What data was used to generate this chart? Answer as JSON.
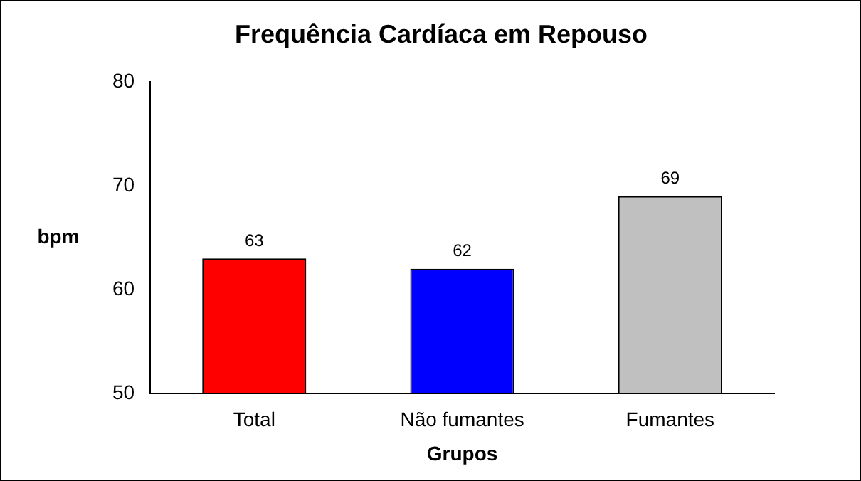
{
  "chart_data": {
    "type": "bar",
    "title": "Frequência Cardíaca em Repouso",
    "xlabel": "Grupos",
    "ylabel": "bpm",
    "categories": [
      "Total",
      "Não fumantes",
      "Fumantes"
    ],
    "values": [
      63,
      62,
      69
    ],
    "colors": [
      "#ff0000",
      "#0000ff",
      "#c0c0c0"
    ],
    "ylim": [
      50,
      80
    ],
    "yticks": [
      50,
      60,
      70,
      80
    ],
    "data_labels": true
  }
}
